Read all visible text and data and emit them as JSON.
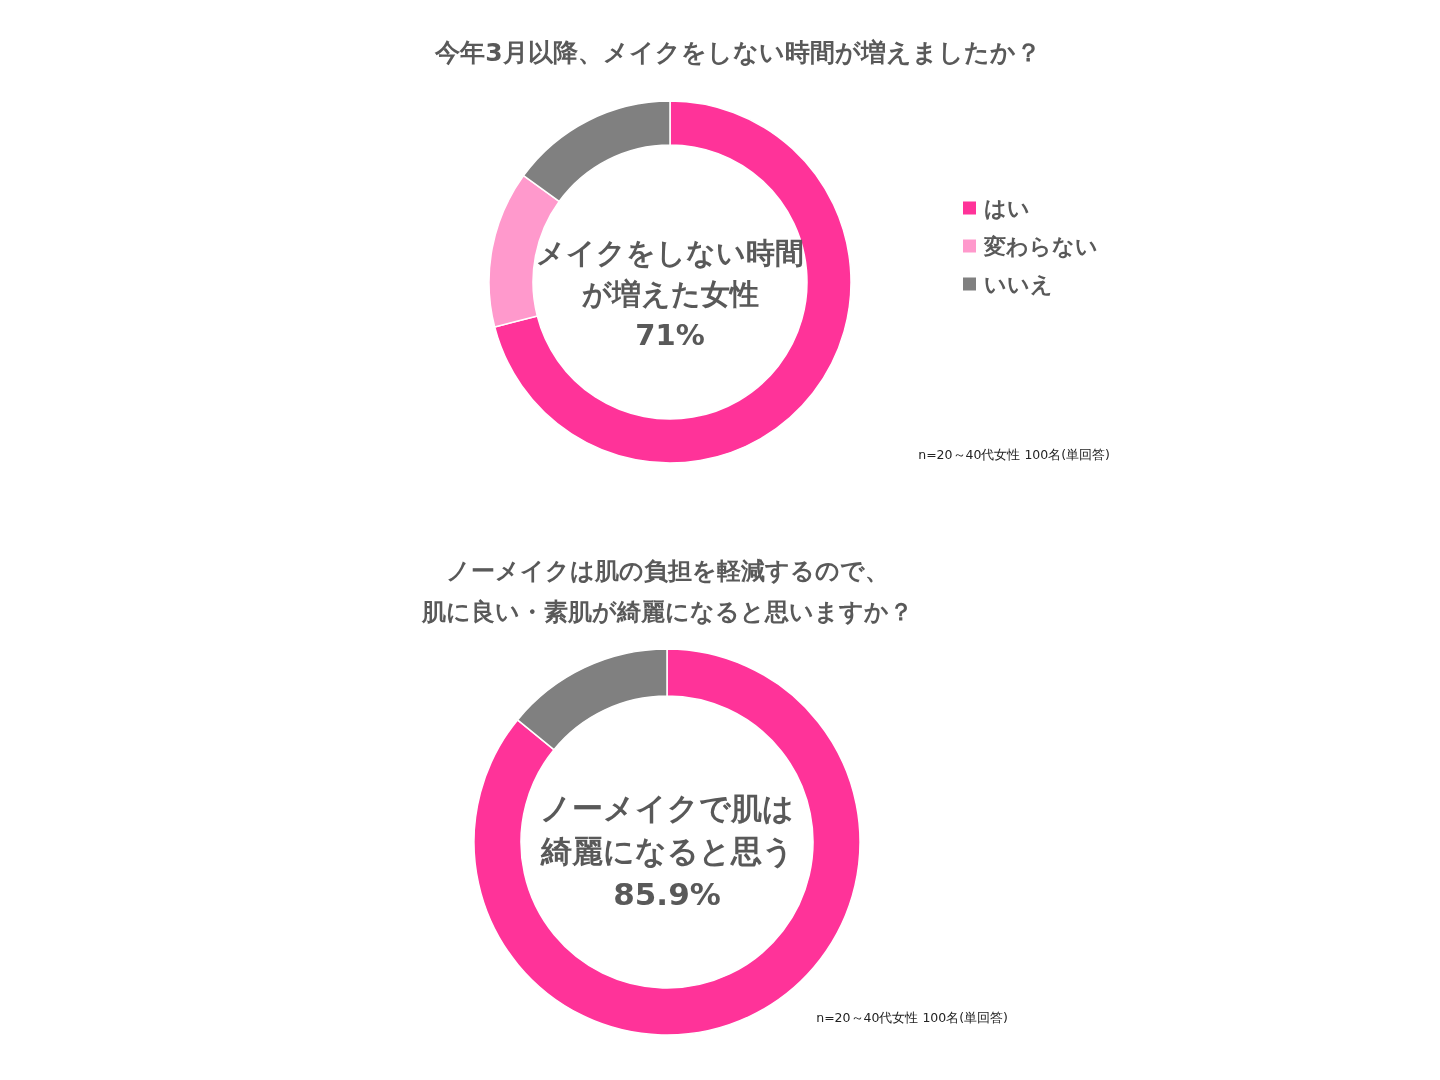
{
  "chart_data": [
    {
      "type": "donut",
      "title": "今年3月以降、メイクをしない時間が増えましたか？",
      "categories": [
        "はい",
        "変わらない",
        "いいえ"
      ],
      "values": [
        71,
        14,
        15
      ],
      "colors": [
        "#ff3399",
        "#ff99cc",
        "#808080"
      ],
      "legend": "right",
      "annotations": [
        "メイクをしない時間",
        "が増えた女性",
        "71%",
        "n=20～40代女性 100名(単回答)"
      ]
    },
    {
      "type": "donut",
      "title": "ノーメイクは肌の負担を軽減するので、",
      "subtitle": "肌に良い・素肌が綺麗になると思いますか？",
      "categories": [
        null,
        null
      ],
      "values": [
        85.9,
        14.1
      ],
      "colors": [
        "#ff3399",
        "#808080"
      ],
      "annotations": [
        "ノーメイクで肌は",
        "綺麗になると思う",
        "85.9%",
        "n=20～40代女性 100名(単回答)"
      ]
    }
  ]
}
